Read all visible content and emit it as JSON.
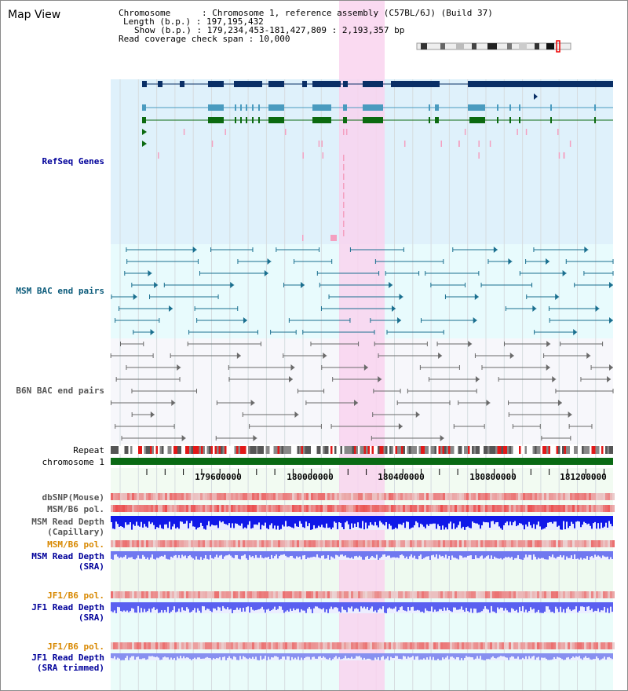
{
  "page": {
    "title": "Map View"
  },
  "info": {
    "chromosome": "Chromosome      : Chromosome 1, reference assembly (C57BL/6J) (Build 37)",
    "length": "Length (b.p.) : 197,195,432",
    "show": "Show (b.p.) : 179,234,453-181,427,809 : 2,193,357 bp",
    "coverage": "Read coverage check span : 10,000"
  },
  "tracks": {
    "refseq": "RefSeq Genes",
    "msm_bac": "MSM BAC end pairs",
    "b6n_bac": "B6N BAC end pairs",
    "repeat": "Repeat",
    "chromosome": "chromosome 1",
    "dbsnp": "dbSNP(Mouse)",
    "msm_b6_pol1": "MSM/B6 pol.",
    "msm_depth_cap_1": "MSM Read Depth",
    "msm_depth_cap_2": "(Capillary)",
    "msm_b6_pol2": "MSM/B6 pol.",
    "msm_depth_sra_1": "MSM Read Depth",
    "msm_depth_sra_2": "(SRA)",
    "jf1_b6_pol1": "JF1/B6 pol.",
    "jf1_depth_sra_1": "JF1 Read Depth",
    "jf1_depth_sra_2": "(SRA)",
    "jf1_b6_pol2": "JF1/B6 pol.",
    "jf1_depth_trim_1": "JF1 Read Depth",
    "jf1_depth_trim_2": "(SRA trimmed)"
  },
  "axis": {
    "ticks": [
      "179600000",
      "180000000",
      "180400000",
      "180800000",
      "181200000"
    ]
  },
  "colors": {
    "refseq_bg": "#dff1fb",
    "msm_bac_bg": "#e8fbfd",
    "b6n_bac_bg": "#f7f7fb",
    "highlight": "#f9d3ef",
    "gene_dark": "#0a2f66",
    "gene_light": "#4a9bbf",
    "gene_green": "#0c6a10",
    "chromosome_bar": "#0a6a14",
    "label_blue": "#00009a",
    "label_teal": "#0a5a7a",
    "label_gray": "#555555",
    "label_orange": "#d88800"
  }
}
